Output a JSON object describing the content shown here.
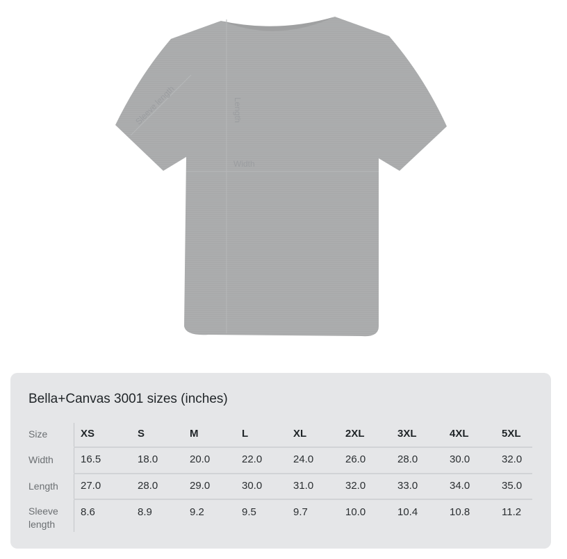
{
  "product_image": {
    "garment": "t-shirt",
    "color": "#a9aaab",
    "labels": {
      "sleeve": "Sleeve length",
      "length": "Length",
      "width": "Width"
    }
  },
  "size_chart": {
    "title": "Bella+Canvas 3001 sizes (inches)",
    "row_headers": [
      "Size",
      "Width",
      "Length",
      "Sleeve length"
    ],
    "sizes": [
      "XS",
      "S",
      "M",
      "L",
      "XL",
      "2XL",
      "3XL",
      "4XL",
      "5XL"
    ],
    "rows": [
      [
        "16.5",
        "18.0",
        "20.0",
        "22.0",
        "24.0",
        "26.0",
        "28.0",
        "30.0",
        "32.0"
      ],
      [
        "27.0",
        "28.0",
        "29.0",
        "30.0",
        "31.0",
        "32.0",
        "33.0",
        "34.0",
        "35.0"
      ],
      [
        "8.6",
        "8.9",
        "9.2",
        "9.5",
        "9.7",
        "10.0",
        "10.4",
        "10.8",
        "11.2"
      ]
    ]
  }
}
